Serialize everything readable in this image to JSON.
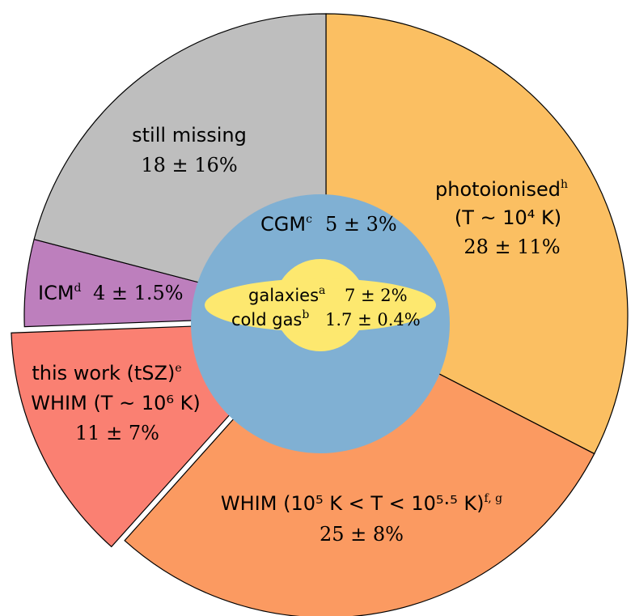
{
  "chart_data": {
    "type": "pie",
    "slices": [
      {
        "label": "photoionised",
        "sup": "h",
        "label2": "(T ~ 10⁴ K)",
        "value": 28,
        "value_text": "28 ± 11%",
        "color": "#fbbf62"
      },
      {
        "label": "WHIM (10⁵ K < T < 10⁵·⁵ K)",
        "sup": "f, g",
        "value": 25,
        "value_text": "25 ± 8%",
        "color": "#fb9a61"
      },
      {
        "label": "this work (tSZ)",
        "sup": "e",
        "label2": "WHIM (T ~ 10⁶ K)",
        "value": 11,
        "value_text": "11 ± 7%",
        "color": "#fa8072",
        "exploded": true
      },
      {
        "label": "ICM",
        "sup": "d",
        "value": 4,
        "value_text": "4 ± 1.5%",
        "color": "#bd7fbd"
      },
      {
        "label": "still missing",
        "value": 18,
        "value_text": "18 ± 16%",
        "color": "#bebebe"
      }
    ],
    "inner": [
      {
        "label": "CGM",
        "sup": "c",
        "value_text": "5 ± 3%",
        "color": "#80b0d3"
      },
      {
        "label": "galaxies",
        "sup": "a",
        "value_text": "7 ± 2%",
        "color": "#fde86f"
      },
      {
        "label": "cold gas",
        "sup": "b",
        "value_text": "1.7 ± 0.4%",
        "color": "#fde86f"
      }
    ]
  }
}
